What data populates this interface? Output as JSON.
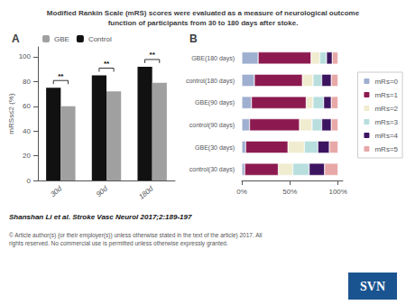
{
  "title": "Modified Rankin Scale (mRS) scores were evaluated as a measure of neurological outcome\nfunction of participants from 30 to 180 days after stoke.",
  "annotations": [
    "Shanshan Li et al. Stroke Vasc Neurol 2017;2:189-197",
    "© Article author(s) (or their employer(s)) unless otherwise stated in the text of the article) 2017. All\nrights reserved. No commercial use is permitted unless otherwise expressly granted.",
    "SVN"
  ],
  "chart_data": [
    {
      "type": "bar",
      "title": "A",
      "categories": [
        "30d",
        "90d",
        "180d"
      ],
      "series": [
        {
          "name": "Control",
          "color": "#111111",
          "values": [
            75,
            85,
            92
          ]
        },
        {
          "name": "GBE",
          "color": "#a0a0a0",
          "values": [
            60,
            72,
            79
          ]
        }
      ],
      "ylabel": "mRSs≤2 (%)",
      "ylim": [
        0,
        108
      ],
      "yticks": [
        0,
        20,
        40,
        60,
        80,
        100
      ],
      "grid": false,
      "legend": "upper left",
      "annotations": [
        "**",
        "**",
        "**"
      ]
    },
    {
      "type": "bar",
      "title": "B",
      "orientation": "horizontal",
      "stacked": true,
      "categories": [
        "GBE(180 days)",
        "control(180 days)",
        "GBE(90 days)",
        "control(90 days)",
        "GBE(30 days)",
        "control(30 days)"
      ],
      "series": [
        {
          "name": "mRs=0",
          "color": "#9eafd0",
          "values": [
            0.17,
            0.13,
            0.1,
            0.08,
            0.04,
            0.03
          ]
        },
        {
          "name": "mRs=1",
          "color": "#8c1a50",
          "values": [
            0.55,
            0.5,
            0.57,
            0.52,
            0.44,
            0.35
          ]
        },
        {
          "name": "mRs=2",
          "color": "#f0ecd0",
          "values": [
            0.09,
            0.11,
            0.07,
            0.13,
            0.17,
            0.15
          ]
        },
        {
          "name": "mRs=3",
          "color": "#b8dede",
          "values": [
            0.07,
            0.09,
            0.11,
            0.1,
            0.14,
            0.17
          ]
        },
        {
          "name": "mRs=4",
          "color": "#3d1460",
          "values": [
            0.06,
            0.1,
            0.08,
            0.1,
            0.12,
            0.16
          ]
        },
        {
          "name": "mRs=5",
          "color": "#e8a8a8",
          "values": [
            0.06,
            0.07,
            0.07,
            0.07,
            0.09,
            0.14
          ]
        }
      ],
      "xlim": [
        0,
        1.05
      ],
      "xticks": [
        {
          "value": 0,
          "label": "0%"
        },
        {
          "value": 0.5,
          "label": "50%"
        },
        {
          "value": 1.0,
          "label": "100%"
        }
      ],
      "grid": false,
      "legend": "right"
    }
  ]
}
